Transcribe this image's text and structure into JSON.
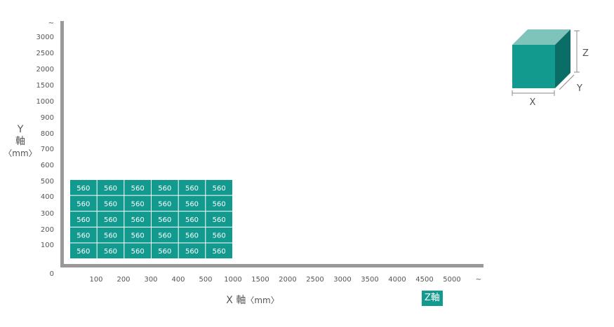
{
  "chart_data": {
    "type": "heatmap",
    "x_axis": {
      "label_main": "X 軸",
      "label_unit": "〈mm〉",
      "ticks": [
        "100",
        "200",
        "300",
        "400",
        "500",
        "1000",
        "1500",
        "2000",
        "2500",
        "3000",
        "3500",
        "4000",
        "4500",
        "5000",
        "~"
      ]
    },
    "y_axis": {
      "label_main": "Y",
      "label_char": "軸",
      "label_unit": "〈mm〉",
      "ticks": [
        "~",
        "3000",
        "2500",
        "2000",
        "1500",
        "1000",
        "900",
        "800",
        "700",
        "600",
        "500",
        "400",
        "300",
        "200",
        "100",
        "0"
      ]
    },
    "z_axis_label": "Z軸",
    "grid_x": [
      "100",
      "200",
      "300",
      "400",
      "500",
      "1000"
    ],
    "grid_y": [
      "500",
      "400",
      "300",
      "200",
      "100"
    ],
    "cells": [
      [
        560,
        560,
        560,
        560,
        560,
        560
      ],
      [
        560,
        560,
        560,
        560,
        560,
        560
      ],
      [
        560,
        560,
        560,
        560,
        560,
        560
      ],
      [
        560,
        560,
        560,
        560,
        560,
        560
      ],
      [
        560,
        560,
        560,
        560,
        560,
        560
      ]
    ],
    "colors": {
      "cell": "#129a8f",
      "axis": "#999999"
    }
  },
  "cube_legend": {
    "x": "X",
    "y": "Y",
    "z": "Z"
  }
}
